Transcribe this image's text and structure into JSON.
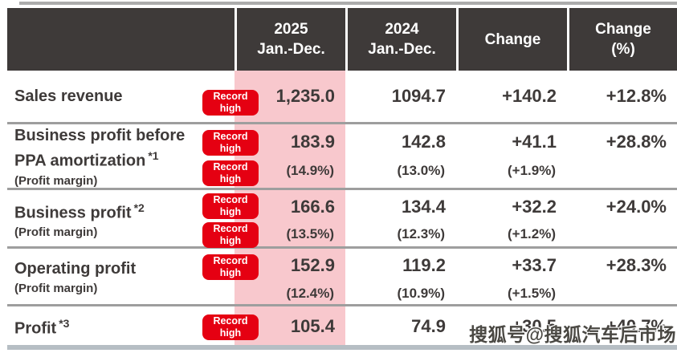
{
  "theme": {
    "header_bg": "#3E3A39",
    "highlight_pink": "#F8C8CD",
    "badge_red": "#E50012",
    "text_dark": "#3E3A39"
  },
  "header": {
    "col_label": "",
    "col_2025": {
      "line1": "2025",
      "line2": "Jan.-Dec."
    },
    "col_2024": {
      "line1": "2024",
      "line2": "Jan.-Dec."
    },
    "col_change": "Change",
    "col_change_pct": {
      "line1": "Change",
      "line2": "(%)"
    }
  },
  "badge": {
    "line1": "Record",
    "line2": "high"
  },
  "rows": [
    {
      "label": "Sales revenue",
      "footnote": "",
      "sublabel": "",
      "v2025": "1,235.0",
      "v2024": "1094.7",
      "change": "+140.2",
      "change_pct": "+12.8%"
    },
    {
      "label": "Business profit before PPA amortization",
      "footnote": "*1",
      "sublabel": "(Profit margin)",
      "v2025": "183.9",
      "v2025_margin": "(14.9%)",
      "v2024": "142.8",
      "v2024_margin": "(13.0%)",
      "change": "+41.1",
      "change_margin": "(+1.9%)",
      "change_pct": "+28.8%"
    },
    {
      "label": "Business profit",
      "footnote": "*2",
      "sublabel": "(Profit margin)",
      "v2025": "166.6",
      "v2025_margin": "(13.5%)",
      "v2024": "134.4",
      "v2024_margin": "(12.3%)",
      "change": "+32.2",
      "change_margin": "(+1.2%)",
      "change_pct": "+24.0%"
    },
    {
      "label": "Operating profit",
      "footnote": "",
      "sublabel": "(Profit margin)",
      "v2025": "152.9",
      "v2025_margin": "(12.4%)",
      "v2024": "119.2",
      "v2024_margin": "(10.9%)",
      "change": "+33.7",
      "change_margin": "(+1.5%)",
      "change_pct": "+28.3%"
    },
    {
      "label": "Profit",
      "footnote": "*3",
      "sublabel": "",
      "v2025": "105.4",
      "v2024": "74.9",
      "change": "+30.5",
      "change_pct": "+40.7%"
    }
  ],
  "watermark": "搜狐号@搜狐汽车后市场"
}
